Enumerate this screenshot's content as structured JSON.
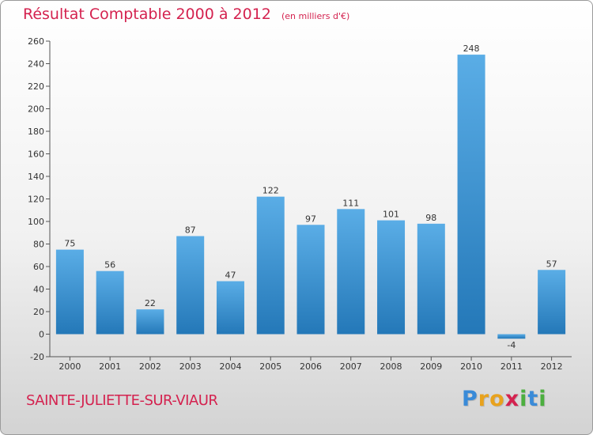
{
  "title": "Résultat Comptable 2000 à 2012",
  "subtitle": "(en milliers d'€)",
  "commune": "SAINTE-JULIETTE-SUR-VIAUR",
  "logo": {
    "letters": [
      "P",
      "r",
      "o",
      "x",
      "i",
      "t",
      "i"
    ],
    "colors": [
      "#3a8bd8",
      "#e8a21d",
      "#e8a21d",
      "#d4224f",
      "#4caf3f",
      "#3a8bd8",
      "#4caf3f"
    ]
  },
  "colors": {
    "title": "#d4224f",
    "bar_light": "#5aade6",
    "bar_dark": "#2478b8"
  },
  "chart_data": {
    "type": "bar",
    "title": "Résultat Comptable 2000 à 2012",
    "subtitle": "(en milliers d'€)",
    "categories": [
      "2000",
      "2001",
      "2002",
      "2003",
      "2004",
      "2005",
      "2006",
      "2007",
      "2008",
      "2009",
      "2010",
      "2011",
      "2012"
    ],
    "values": [
      75,
      56,
      22,
      87,
      47,
      122,
      97,
      111,
      101,
      98,
      248,
      -4,
      57
    ],
    "ylim": [
      -20,
      260
    ],
    "yticks": [
      -20,
      0,
      20,
      40,
      60,
      80,
      100,
      120,
      140,
      160,
      180,
      200,
      220,
      240,
      260
    ],
    "grid": false,
    "legend": "none"
  }
}
